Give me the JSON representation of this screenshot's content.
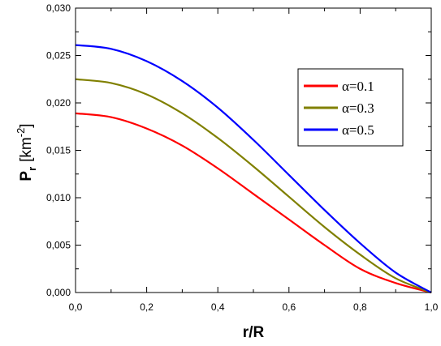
{
  "chart_data": {
    "type": "line",
    "xlabel": "r/R",
    "ylabel": {
      "main": "P",
      "subscript": "r",
      "unit_open": "[km",
      "unit_power": "-2",
      "unit_close": "]"
    },
    "xlim": [
      0.0,
      1.0
    ],
    "ylim": [
      0.0,
      0.03
    ],
    "x_ticks": [
      "0,0",
      "0,2",
      "0,4",
      "0,6",
      "0,8",
      "1,0"
    ],
    "y_ticks": [
      "0,000",
      "0,005",
      "0,010",
      "0,015",
      "0,020",
      "0,025",
      "0,030"
    ],
    "grid": false,
    "legend_position": "top-right",
    "x": [
      0.0,
      0.1,
      0.2,
      0.3,
      0.4,
      0.5,
      0.6,
      0.7,
      0.8,
      0.9,
      1.0
    ],
    "series": [
      {
        "name": "α=0.1",
        "color": "#ff0000",
        "values": [
          0.0189,
          0.0185,
          0.0173,
          0.0155,
          0.0131,
          0.0104,
          0.0077,
          0.005,
          0.0025,
          0.001,
          0.0
        ]
      },
      {
        "name": "α=0.3",
        "color": "#808000",
        "values": [
          0.0225,
          0.0221,
          0.0209,
          0.0189,
          0.0163,
          0.0133,
          0.0101,
          0.0069,
          0.004,
          0.0015,
          0.0
        ]
      },
      {
        "name": "α=0.5",
        "color": "#0000ff",
        "values": [
          0.0261,
          0.0257,
          0.0244,
          0.0223,
          0.0195,
          0.0161,
          0.0124,
          0.0087,
          0.0052,
          0.0021,
          0.0
        ]
      }
    ]
  }
}
